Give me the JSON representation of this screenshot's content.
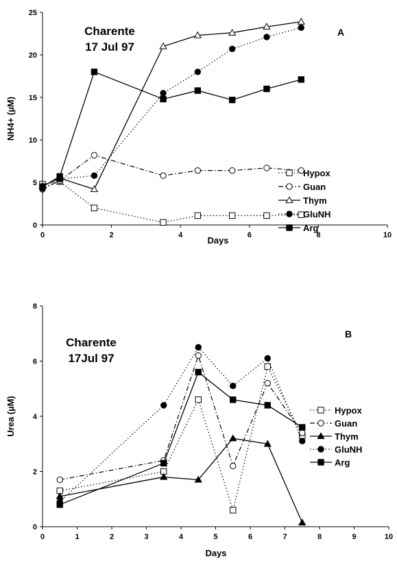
{
  "chart_data": [
    {
      "type": "line",
      "panel_letter": "A",
      "annotation": [
        "Charente",
        "17 Jul 97"
      ],
      "xlabel": "Days",
      "ylabel": "NH4+ (µM)",
      "xlim": [
        0,
        10
      ],
      "ylim": [
        0,
        25
      ],
      "xticks": [
        "0",
        "2",
        "4",
        "6",
        "8",
        "10"
      ],
      "yticks": [
        "0",
        "5",
        "10",
        "15",
        "20",
        "25"
      ],
      "grid": false,
      "legend_position": "right",
      "series": [
        {
          "name": "Hypox",
          "marker": "open-square",
          "line": "dotted",
          "x": [
            0,
            0.5,
            1.5,
            3.5,
            4.5,
            5.5,
            6.5,
            7.5
          ],
          "y": [
            4.8,
            5.1,
            2.0,
            0.3,
            1.1,
            1.1,
            1.1,
            1.2
          ]
        },
        {
          "name": "Guan",
          "marker": "open-circle",
          "line": "dashdot",
          "x": [
            0,
            0.5,
            1.5,
            3.5,
            4.5,
            5.5,
            6.5,
            7.5
          ],
          "y": [
            4.2,
            5.2,
            8.2,
            5.8,
            6.4,
            6.4,
            6.7,
            6.4
          ]
        },
        {
          "name": "Thym",
          "marker": "open-triangle",
          "line": "solid",
          "x": [
            0,
            0.5,
            1.5,
            3.5,
            4.5,
            5.5,
            6.5,
            7.5
          ],
          "y": [
            4.6,
            5.5,
            4.2,
            21.0,
            22.3,
            22.6,
            23.3,
            23.9
          ]
        },
        {
          "name": "GluNH",
          "marker": "filled-circle",
          "line": "dotted",
          "x": [
            0,
            0.5,
            1.5,
            3.5,
            4.5,
            5.5,
            6.5,
            7.5
          ],
          "y": [
            4.3,
            5.4,
            5.8,
            15.5,
            18.0,
            20.7,
            22.1,
            23.2
          ]
        },
        {
          "name": "Arg",
          "marker": "filled-square",
          "line": "solid",
          "x": [
            0,
            0.5,
            1.5,
            3.5,
            4.5,
            5.5,
            6.5,
            7.5
          ],
          "y": [
            4.5,
            5.7,
            18.0,
            14.8,
            15.8,
            14.7,
            16.0,
            17.1
          ]
        }
      ]
    },
    {
      "type": "line",
      "panel_letter": "B",
      "annotation": [
        "Charente",
        "17Jul 97"
      ],
      "xlabel": "Days",
      "ylabel": "Urea (µM)",
      "xlim": [
        0,
        10
      ],
      "ylim": [
        0,
        8
      ],
      "xticks": [
        "0",
        "1",
        "2",
        "3",
        "4",
        "5",
        "6",
        "7",
        "8",
        "9",
        "10"
      ],
      "yticks": [
        "0",
        "2",
        "4",
        "6",
        "8"
      ],
      "grid": false,
      "legend_position": "right",
      "series": [
        {
          "name": "Hypox",
          "marker": "open-square",
          "line": "dotted",
          "x": [
            0.5,
            3.5,
            4.5,
            5.5,
            6.5,
            7.5
          ],
          "y": [
            1.3,
            2.0,
            4.6,
            0.6,
            5.8,
            3.3
          ]
        },
        {
          "name": "Guan",
          "marker": "open-circle",
          "line": "dashdot",
          "x": [
            0.5,
            3.5,
            4.5,
            5.5,
            6.5,
            7.5
          ],
          "y": [
            1.7,
            2.4,
            6.2,
            2.2,
            5.2,
            3.4
          ]
        },
        {
          "name": "Thym",
          "marker": "filled-triangle",
          "line": "solid",
          "x": [
            0.5,
            3.5,
            4.5,
            5.5,
            6.5,
            7.5
          ],
          "y": [
            1.1,
            1.8,
            1.7,
            3.2,
            3.0,
            0.15
          ]
        },
        {
          "name": "GluNH",
          "marker": "filled-circle",
          "line": "dotted",
          "x": [
            0.5,
            3.5,
            4.5,
            5.5,
            6.5,
            7.5
          ],
          "y": [
            0.9,
            4.4,
            6.5,
            5.1,
            6.1,
            3.1
          ]
        },
        {
          "name": "Arg",
          "marker": "filled-square",
          "line": "solid",
          "x": [
            0.5,
            3.5,
            4.5,
            5.5,
            6.5,
            7.5
          ],
          "y": [
            0.8,
            2.3,
            5.6,
            4.6,
            4.4,
            3.6
          ]
        }
      ]
    }
  ]
}
